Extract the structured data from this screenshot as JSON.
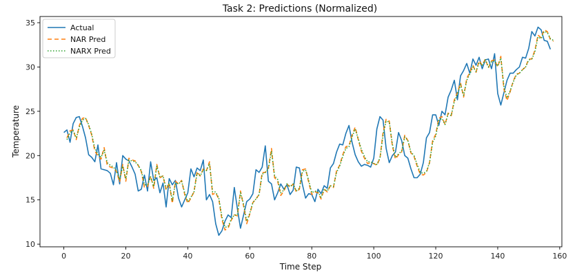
{
  "chart_data": {
    "type": "line",
    "title": "Task 2: Predictions (Normalized)",
    "xlabel": "Time Step",
    "ylabel": "Temperature",
    "xlim": [
      -7.7,
      160.7
    ],
    "ylim": [
      9.7,
      35.7
    ],
    "xticks": [
      0,
      20,
      40,
      60,
      80,
      100,
      120,
      140,
      160
    ],
    "yticks": [
      10,
      15,
      20,
      25,
      30,
      35
    ],
    "grid": false,
    "legend_position": "top-left",
    "series": [
      {
        "name": "Actual",
        "color": "#1f77b4",
        "dash": "solid",
        "offset": 0,
        "values": [
          22.6,
          22.9,
          21.5,
          23.6,
          24.3,
          24.4,
          23.3,
          22.0,
          20.1,
          19.8,
          19.3,
          21.2,
          18.5,
          18.4,
          18.3,
          18.0,
          16.7,
          19.2,
          16.8,
          20.0,
          19.6,
          19.4,
          18.7,
          17.9,
          16.0,
          16.2,
          17.8,
          16.0,
          19.3,
          17.2,
          17.5,
          15.8,
          16.9,
          14.2,
          17.4,
          16.7,
          17.2,
          15.2,
          14.2,
          15.0,
          15.8,
          18.5,
          17.6,
          18.6,
          18.3,
          19.5,
          15.0,
          15.6,
          14.8,
          12.3,
          11.0,
          11.5,
          12.6,
          13.3,
          13.0,
          16.4,
          14.0,
          11.8,
          13.3,
          14.8,
          15.1,
          15.7,
          18.4,
          18.1,
          18.7,
          21.1,
          17.1,
          16.8,
          15.0,
          15.8,
          16.8,
          16.2,
          16.7,
          15.6,
          16.1,
          18.7,
          18.6,
          16.7,
          15.2,
          15.7,
          15.6,
          14.8,
          16.2,
          15.7,
          16.6,
          16.3,
          18.6,
          19.1,
          20.4,
          21.3,
          21.2,
          22.5,
          23.4,
          21.5,
          20.1,
          19.3,
          18.8,
          19.0,
          18.9,
          18.7,
          19.7,
          23.0,
          24.4,
          24.0,
          20.8,
          19.2,
          20.0,
          20.4,
          22.6,
          21.7,
          20.0,
          19.7,
          18.5,
          17.5,
          17.5,
          17.9,
          19.2,
          22.0,
          22.6,
          24.6,
          24.6,
          23.4,
          25.0,
          24.6,
          26.6,
          27.4,
          28.5,
          26.3,
          29.0,
          29.6,
          30.4,
          29.3,
          30.9,
          30.2,
          31.1,
          29.8,
          30.8,
          30.9,
          29.8,
          31.5,
          27.0,
          25.7,
          27.1,
          28.5,
          29.3,
          29.3,
          29.7,
          30.0,
          31.1,
          31.0,
          32.1,
          34.0,
          33.5,
          34.5,
          34.2,
          33.0,
          32.9,
          32.0
        ]
      },
      {
        "name": "NAR Pred",
        "color": "#ff7f0e",
        "dash": "6,4",
        "offset": 1,
        "values": [
          22.0,
          22.8,
          22.9,
          21.8,
          23.4,
          24.2,
          24.3,
          23.4,
          22.3,
          20.5,
          20.0,
          19.6,
          20.9,
          18.9,
          18.7,
          18.6,
          18.2,
          17.0,
          19.0,
          17.1,
          19.7,
          19.5,
          19.4,
          18.9,
          18.2,
          16.4,
          16.5,
          17.7,
          16.3,
          19.0,
          17.5,
          17.7,
          16.1,
          16.9,
          14.6,
          17.1,
          16.8,
          17.2,
          15.6,
          14.6,
          15.2,
          15.9,
          18.2,
          17.7,
          18.5,
          18.3,
          19.3,
          15.6,
          15.8,
          15.1,
          12.8,
          11.6,
          11.8,
          12.7,
          13.3,
          13.2,
          16.0,
          14.3,
          12.3,
          13.4,
          14.7,
          15.1,
          15.6,
          18.1,
          18.1,
          18.6,
          20.8,
          17.5,
          17.1,
          15.5,
          16.0,
          16.8,
          16.4,
          16.8,
          15.9,
          16.2,
          18.4,
          18.5,
          17.0,
          15.6,
          15.9,
          15.8,
          15.1,
          16.2,
          15.9,
          16.6,
          16.4,
          18.3,
          18.9,
          20.1,
          21.0,
          21.1,
          22.3,
          23.2,
          21.8,
          20.5,
          19.7,
          19.1,
          19.2,
          19.1,
          18.9,
          19.7,
          22.6,
          24.1,
          23.9,
          21.1,
          19.6,
          20.1,
          20.4,
          22.3,
          21.7,
          20.3,
          19.9,
          18.8,
          17.9,
          17.8,
          18.1,
          19.2,
          21.7,
          22.4,
          24.2,
          24.4,
          23.5,
          24.8,
          24.5,
          26.3,
          27.1,
          28.2,
          26.6,
          28.7,
          29.4,
          30.2,
          29.4,
          30.7,
          30.2,
          30.9,
          29.9,
          30.7,
          30.8,
          30.0,
          31.2,
          27.5,
          26.2,
          27.2,
          28.4,
          29.2,
          29.3,
          29.7,
          30.0,
          30.9,
          30.9,
          31.9,
          33.6,
          33.3,
          34.2,
          34.0,
          33.1,
          32.9
        ]
      },
      {
        "name": "NARX Pred",
        "color": "#2ca02c",
        "dash": "1.5,2.5",
        "offset": 1,
        "values": [
          21.8,
          22.6,
          22.8,
          22.0,
          23.2,
          24.0,
          24.2,
          23.5,
          22.4,
          20.8,
          20.2,
          19.8,
          20.6,
          19.2,
          18.9,
          18.7,
          18.3,
          17.3,
          18.8,
          17.4,
          19.5,
          19.4,
          19.3,
          18.9,
          18.3,
          16.7,
          16.7,
          17.6,
          16.5,
          18.8,
          17.6,
          17.7,
          16.3,
          16.9,
          14.9,
          16.9,
          16.8,
          17.1,
          15.8,
          14.8,
          15.3,
          15.9,
          18.0,
          17.7,
          18.4,
          18.3,
          19.1,
          15.9,
          15.9,
          15.2,
          13.1,
          11.9,
          12.0,
          12.8,
          13.3,
          13.3,
          15.8,
          14.5,
          12.6,
          13.5,
          14.7,
          15.1,
          15.6,
          17.9,
          18.1,
          18.5,
          20.5,
          17.7,
          17.3,
          15.8,
          16.1,
          16.8,
          16.5,
          16.8,
          16.0,
          16.3,
          18.2,
          18.4,
          17.2,
          15.8,
          16.0,
          15.9,
          15.3,
          16.2,
          16.0,
          16.6,
          16.5,
          18.1,
          18.8,
          19.9,
          20.8,
          21.0,
          22.1,
          23.0,
          21.9,
          20.7,
          19.9,
          19.3,
          19.3,
          19.1,
          19.0,
          19.7,
          22.3,
          23.9,
          23.8,
          21.3,
          19.8,
          20.2,
          20.5,
          22.1,
          21.7,
          20.4,
          20.0,
          19.0,
          18.1,
          18.0,
          18.2,
          19.2,
          21.5,
          22.2,
          24.0,
          24.2,
          23.5,
          24.7,
          24.5,
          26.1,
          26.9,
          28.0,
          26.8,
          28.5,
          29.2,
          30.0,
          29.5,
          30.5,
          30.2,
          30.8,
          30.0,
          30.6,
          30.7,
          30.1,
          31.0,
          27.8,
          26.5,
          27.3,
          28.3,
          29.1,
          29.3,
          29.7,
          30.0,
          30.8,
          30.9,
          31.7,
          33.4,
          33.2,
          34.0,
          33.9,
          33.2,
          33.0
        ]
      }
    ]
  }
}
